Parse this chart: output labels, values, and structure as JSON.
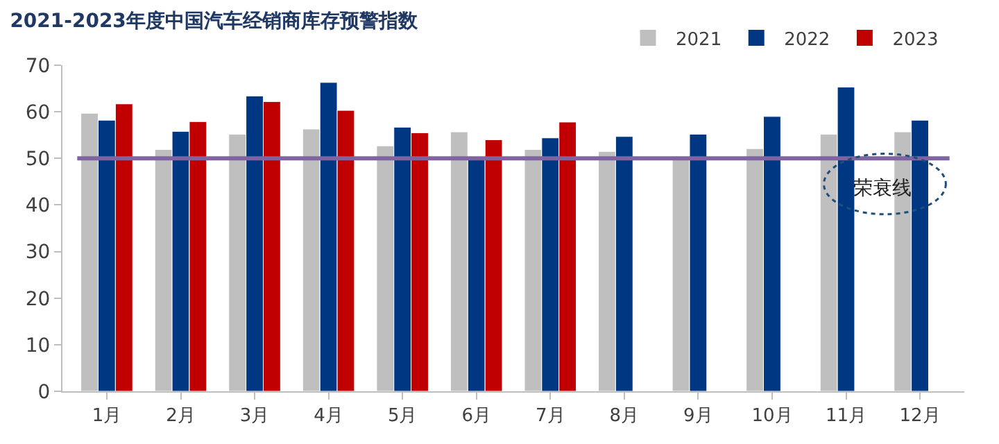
{
  "chart_data": {
    "type": "bar",
    "title": "2021-2023年度中国汽车经销商库存预警指数",
    "categories": [
      "1月",
      "2月",
      "3月",
      "4月",
      "5月",
      "6月",
      "7月",
      "8月",
      "9月",
      "10月",
      "11月",
      "12月"
    ],
    "series": [
      {
        "name": "2021",
        "color": "#bfbfbf",
        "values": [
          59.7,
          51.9,
          55.2,
          56.3,
          52.7,
          55.7,
          51.9,
          51.5,
          50.1,
          52.1,
          55.2,
          55.7
        ]
      },
      {
        "name": "2022",
        "color": "#003783",
        "values": [
          58.2,
          55.8,
          63.4,
          66.3,
          56.7,
          50.1,
          54.4,
          54.7,
          55.2,
          59.0,
          65.3,
          58.2
        ]
      },
      {
        "name": "2023",
        "color": "#c00000",
        "values": [
          61.7,
          57.9,
          62.2,
          60.3,
          55.5,
          54.0,
          57.8,
          null,
          null,
          null,
          null,
          null
        ]
      }
    ],
    "ylim": [
      0,
      70
    ],
    "yticks": [
      0,
      10,
      20,
      30,
      40,
      50,
      60,
      70
    ],
    "ref_lines": [
      {
        "axis": "y",
        "value": 50,
        "label": "荣衰线",
        "color": "#8064a2"
      }
    ],
    "legend": "top right"
  }
}
